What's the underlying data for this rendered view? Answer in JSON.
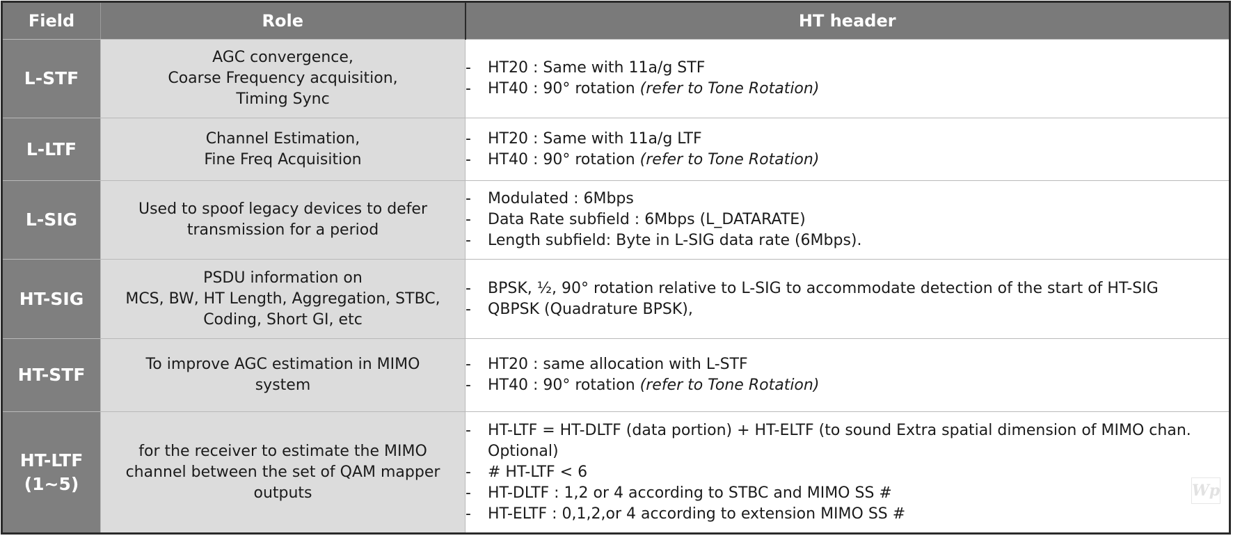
{
  "header": {
    "field": "Field",
    "role": "Role",
    "ht_header": "HT header"
  },
  "rows": [
    {
      "field": "L-STF",
      "role_lines": [
        "AGC convergence,",
        "Coarse Frequency acquisition,",
        "Timing Sync"
      ],
      "items": [
        {
          "text": "HT20 : Same with 11a/g STF",
          "note": ""
        },
        {
          "text": "HT40 : 90° rotation ",
          "note": "(refer to Tone Rotation)"
        }
      ]
    },
    {
      "field": "L-LTF",
      "role_lines": [
        "Channel Estimation,",
        "Fine Freq Acquisition"
      ],
      "items": [
        {
          "text": "HT20 : Same with 11a/g LTF",
          "note": ""
        },
        {
          "text": "HT40 : 90° rotation ",
          "note": "(refer to Tone Rotation)"
        }
      ]
    },
    {
      "field": "L-SIG",
      "role_lines": [
        "Used to spoof legacy devices to defer",
        "transmission for a period"
      ],
      "items": [
        {
          "text": "Modulated : 6Mbps",
          "note": ""
        },
        {
          "text": "Data Rate subfield : 6Mbps (L_DATARATE)",
          "note": ""
        },
        {
          "text": "Length subfield: Byte in L-SIG data rate (6Mbps).",
          "note": ""
        }
      ]
    },
    {
      "field": "HT-SIG",
      "role_lines": [
        "PSDU information on",
        "MCS, BW, HT Length, Aggregation, STBC,",
        "Coding, Short GI, etc"
      ],
      "items": [
        {
          "text": "BPSK, ½, 90° rotation relative to L-SIG to accommodate detection of the start of HT-SIG",
          "note": ""
        },
        {
          "text": "QBPSK (Quadrature BPSK),",
          "note": ""
        }
      ]
    },
    {
      "field": "HT-STF",
      "role_lines": [
        "To improve AGC estimation in MIMO",
        "system"
      ],
      "items": [
        {
          "text": "HT20 : same allocation with L-STF",
          "note": ""
        },
        {
          "text": "HT40 : 90° rotation ",
          "note": "(refer to Tone Rotation)"
        }
      ]
    },
    {
      "field_lines": [
        "HT-LTF",
        "(1~5)"
      ],
      "role_lines": [
        "for the receiver to estimate the MIMO",
        "channel between the set of QAM mapper",
        "outputs"
      ],
      "items": [
        {
          "text": "HT-LTF = HT-DLTF (data portion) + HT-ELTF (to sound Extra spatial dimension of MIMO chan. Optional)",
          "note": ""
        },
        {
          "text": "# HT-LTF < 6",
          "note": ""
        },
        {
          "text": "HT-DLTF : 1,2 or 4 according to STBC and MIMO SS #",
          "note": ""
        },
        {
          "text": "HT-ELTF : 0,1,2,or 4 according to extension MIMO SS #",
          "note": ""
        }
      ]
    }
  ],
  "watermark": {
    "text": "Wp"
  }
}
